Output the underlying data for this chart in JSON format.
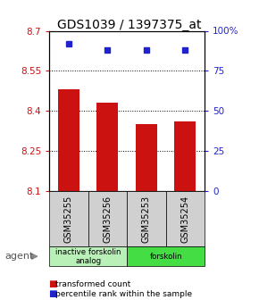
{
  "title": "GDS1039 / 1397375_at",
  "samples": [
    "GSM35255",
    "GSM35256",
    "GSM35253",
    "GSM35254"
  ],
  "bar_values": [
    8.48,
    8.43,
    8.35,
    8.36
  ],
  "percentile_values": [
    92,
    88,
    88,
    88
  ],
  "ylim_left": [
    8.1,
    8.7
  ],
  "ylim_right": [
    0,
    100
  ],
  "yticks_left": [
    8.1,
    8.25,
    8.4,
    8.55,
    8.7
  ],
  "yticks_right": [
    0,
    25,
    50,
    75,
    100
  ],
  "ytick_labels_left": [
    "8.1",
    "8.25",
    "8.4",
    "8.55",
    "8.7"
  ],
  "ytick_labels_right": [
    "0",
    "25",
    "50",
    "75",
    "100%"
  ],
  "bar_color": "#cc1111",
  "dot_color": "#2222cc",
  "bar_width": 0.55,
  "groups": [
    {
      "label": "inactive forskolin\nanalog",
      "indices": [
        0,
        1
      ],
      "color": "#b8f0b8"
    },
    {
      "label": "forskolin",
      "indices": [
        2,
        3
      ],
      "color": "#44dd44"
    }
  ],
  "agent_label": "agent",
  "legend_red": "transformed count",
  "legend_blue": "percentile rank within the sample",
  "title_fontsize": 10,
  "tick_fontsize": 7.5,
  "sample_fontsize": 7
}
